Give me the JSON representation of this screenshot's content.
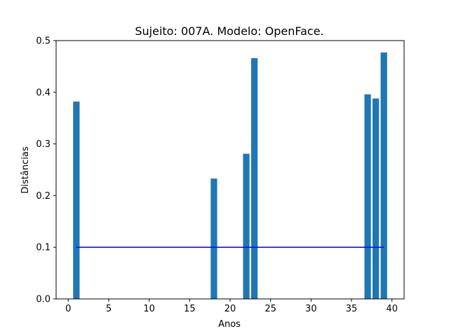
{
  "chart_data": {
    "type": "bar",
    "title": "Sujeito: 007A. Modelo: OpenFace.",
    "xlabel": "Anos",
    "ylabel": "Distâncias",
    "xlim": [
      -1.5,
      41.5
    ],
    "ylim": [
      0,
      0.5
    ],
    "xticks": [
      0,
      5,
      10,
      15,
      20,
      25,
      30,
      35,
      40
    ],
    "yticks": [
      0.0,
      0.1,
      0.2,
      0.3,
      0.4,
      0.5
    ],
    "bar_color": "#1f77b4",
    "bar_width": 0.8,
    "x": [
      1,
      18,
      22,
      23,
      37,
      38,
      39
    ],
    "values": [
      0.382,
      0.233,
      0.281,
      0.466,
      0.396,
      0.388,
      0.477
    ],
    "threshold_line": {
      "y": 0.1,
      "x_start": 1,
      "x_end": 39,
      "color": "#0000ff"
    },
    "grid": false
  }
}
